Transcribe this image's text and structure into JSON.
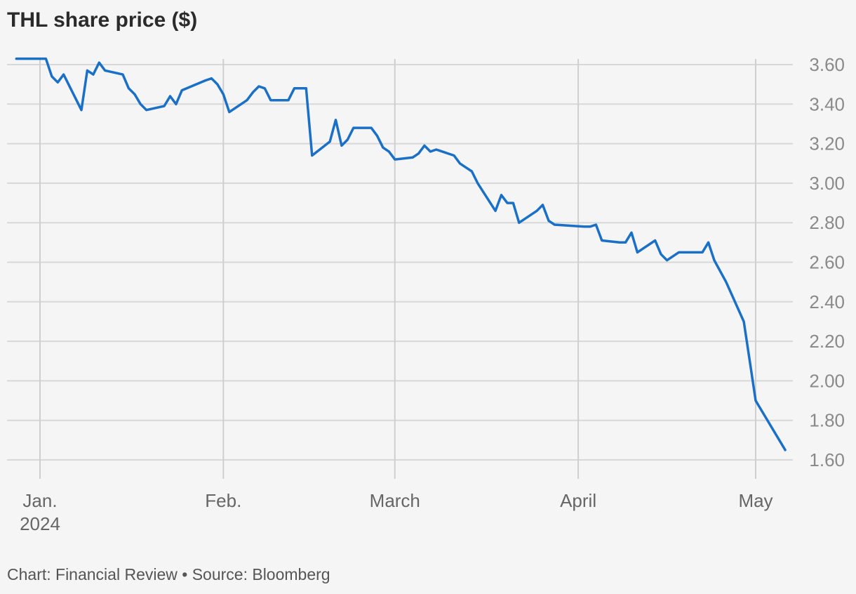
{
  "title": "THL share price ($)",
  "footer": "Chart: Financial Review • Source: Bloomberg",
  "colors": {
    "line": "#1a6fc6",
    "grid": "#d8d8d8",
    "axis_text": "#8a8a8a",
    "background": "#f5f5f5"
  },
  "chart_data": {
    "type": "line",
    "title": "THL share price ($)",
    "xlabel": "",
    "ylabel": "",
    "y_ticks": [
      1.6,
      1.8,
      2.0,
      2.2,
      2.4,
      2.6,
      2.8,
      3.0,
      3.2,
      3.4,
      3.6
    ],
    "y_tick_labels": [
      "1.60",
      "1.80",
      "2.00",
      "2.20",
      "2.40",
      "2.60",
      "2.80",
      "3.00",
      "3.20",
      "3.40",
      "3.60"
    ],
    "ylim": [
      1.55,
      3.65
    ],
    "xlim": [
      "2023-12-29",
      "2024-05-06"
    ],
    "x_ticks": [
      {
        "date": "2024-01-01",
        "label": "Jan.",
        "sublabel": "2024"
      },
      {
        "date": "2024-02-01",
        "label": "Feb.",
        "sublabel": ""
      },
      {
        "date": "2024-03-01",
        "label": "March",
        "sublabel": ""
      },
      {
        "date": "2024-04-01",
        "label": "April",
        "sublabel": ""
      },
      {
        "date": "2024-05-01",
        "label": "May",
        "sublabel": ""
      }
    ],
    "grid": true,
    "y_axis_side": "right",
    "series": [
      {
        "color": "#1a6fc6",
        "x": [
          "2023-12-28",
          "2023-12-29",
          "2024-01-02",
          "2024-01-03",
          "2024-01-04",
          "2024-01-05",
          "2024-01-08",
          "2024-01-09",
          "2024-01-10",
          "2024-01-11",
          "2024-01-12",
          "2024-01-15",
          "2024-01-16",
          "2024-01-17",
          "2024-01-18",
          "2024-01-19",
          "2024-01-22",
          "2024-01-23",
          "2024-01-24",
          "2024-01-25",
          "2024-01-29",
          "2024-01-30",
          "2024-01-31",
          "2024-02-01",
          "2024-02-02",
          "2024-02-05",
          "2024-02-06",
          "2024-02-07",
          "2024-02-08",
          "2024-02-09",
          "2024-02-12",
          "2024-02-13",
          "2024-02-14",
          "2024-02-15",
          "2024-02-16",
          "2024-02-19",
          "2024-02-20",
          "2024-02-21",
          "2024-02-22",
          "2024-02-23",
          "2024-02-26",
          "2024-02-27",
          "2024-02-28",
          "2024-02-29",
          "2024-03-01",
          "2024-03-04",
          "2024-03-05",
          "2024-03-06",
          "2024-03-07",
          "2024-03-08",
          "2024-03-11",
          "2024-03-12",
          "2024-03-13",
          "2024-03-14",
          "2024-03-15",
          "2024-03-18",
          "2024-03-19",
          "2024-03-20",
          "2024-03-21",
          "2024-03-22",
          "2024-03-25",
          "2024-03-26",
          "2024-03-27",
          "2024-03-28",
          "2024-04-02",
          "2024-04-03",
          "2024-04-04",
          "2024-04-05",
          "2024-04-08",
          "2024-04-09",
          "2024-04-10",
          "2024-04-11",
          "2024-04-14",
          "2024-04-15",
          "2024-04-16",
          "2024-04-17",
          "2024-04-18",
          "2024-04-19",
          "2024-04-22",
          "2024-04-23",
          "2024-04-24",
          "2024-04-26",
          "2024-04-29",
          "2024-04-30",
          "2024-05-01",
          "2024-05-06"
        ],
        "values": [
          3.63,
          3.63,
          3.63,
          3.54,
          3.51,
          3.55,
          3.37,
          3.57,
          3.55,
          3.61,
          3.57,
          3.55,
          3.48,
          3.45,
          3.4,
          3.37,
          3.39,
          3.44,
          3.4,
          3.47,
          3.52,
          3.53,
          3.5,
          3.45,
          3.36,
          3.42,
          3.46,
          3.49,
          3.48,
          3.42,
          3.42,
          3.48,
          3.48,
          3.48,
          3.14,
          3.21,
          3.32,
          3.19,
          3.22,
          3.28,
          3.28,
          3.24,
          3.18,
          3.16,
          3.12,
          3.13,
          3.15,
          3.19,
          3.16,
          3.17,
          3.14,
          3.1,
          3.08,
          3.06,
          3.0,
          2.86,
          2.94,
          2.9,
          2.9,
          2.8,
          2.86,
          2.89,
          2.81,
          2.79,
          2.78,
          2.78,
          2.79,
          2.71,
          2.7,
          2.7,
          2.75,
          2.65,
          2.71,
          2.64,
          2.61,
          2.63,
          2.65,
          2.65,
          2.65,
          2.7,
          2.61,
          2.5,
          2.3,
          2.1,
          1.9,
          1.65
        ]
      }
    ]
  }
}
